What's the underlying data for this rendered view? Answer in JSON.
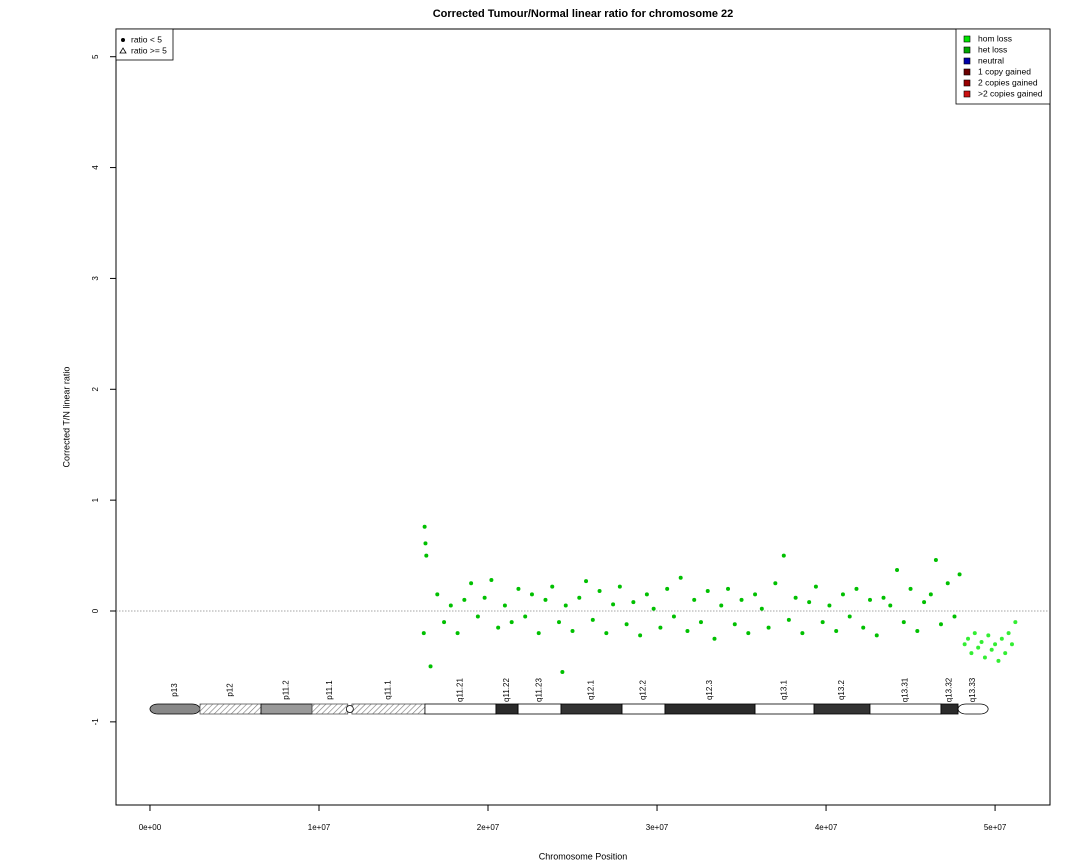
{
  "chart_data": {
    "type": "scatter",
    "title": "Corrected Tumour/Normal linear ratio for chromosome  22",
    "x_label": "Chromosome Position",
    "y_label": "Corrected T/N linear ratio",
    "xlim": [
      -2010000,
      53250000
    ],
    "ylim": [
      -1.75,
      5.25
    ],
    "xticks": [
      {
        "value": 0,
        "label": "0e+00"
      },
      {
        "value": 10000000,
        "label": "1e+07"
      },
      {
        "value": 20000000,
        "label": "2e+07"
      },
      {
        "value": 30000000,
        "label": "3e+07"
      },
      {
        "value": 40000000,
        "label": "4e+07"
      },
      {
        "value": 50000000,
        "label": "5e+07"
      }
    ],
    "yticks": [
      -1,
      0,
      1,
      2,
      3,
      4,
      5
    ],
    "hline": 0,
    "series": [
      {
        "color": "#00c000",
        "x": [
          16200000,
          16250000,
          16300000,
          16350000,
          16600000,
          17000000,
          17400000,
          17800000,
          18200000,
          18600000,
          19000000,
          19400000,
          19800000,
          20200000,
          20600000,
          21000000,
          21400000,
          21800000,
          22200000,
          22600000,
          23000000,
          23400000,
          23800000,
          24200000,
          24400000,
          24600000,
          25000000,
          25400000,
          25800000,
          26200000,
          26600000,
          27000000,
          27400000,
          27800000,
          28200000,
          28600000,
          29000000,
          29400000,
          29800000,
          30200000,
          30600000,
          31000000,
          31400000,
          31800000,
          32200000,
          32600000,
          33000000,
          33400000,
          33800000,
          34200000,
          34600000,
          35000000,
          35400000,
          35800000,
          36200000,
          36600000,
          37000000,
          37500000,
          37800000,
          38200000,
          38600000,
          39000000,
          39400000,
          39800000,
          40200000,
          40600000,
          41000000,
          41400000,
          41800000,
          42200000,
          42600000,
          43000000,
          43400000,
          43800000,
          44200000,
          44600000,
          45000000,
          45400000,
          45800000,
          46200000,
          46500000,
          46800000,
          47200000,
          47600000,
          47900000
        ],
        "values": [
          -0.2,
          0.76,
          0.61,
          0.5,
          -0.5,
          0.15,
          -0.1,
          0.05,
          -0.2,
          0.1,
          0.25,
          -0.05,
          0.12,
          0.28,
          -0.15,
          0.05,
          -0.1,
          0.2,
          -0.05,
          0.15,
          -0.2,
          0.1,
          0.22,
          -0.1,
          -0.55,
          0.05,
          -0.18,
          0.12,
          0.27,
          -0.08,
          0.18,
          -0.2,
          0.06,
          0.22,
          -0.12,
          0.08,
          -0.22,
          0.15,
          0.02,
          -0.15,
          0.2,
          -0.05,
          0.3,
          -0.18,
          0.1,
          -0.1,
          0.18,
          -0.25,
          0.05,
          0.2,
          -0.12,
          0.1,
          -0.2,
          0.15,
          0.02,
          -0.15,
          0.25,
          0.5,
          -0.08,
          0.12,
          -0.2,
          0.08,
          0.22,
          -0.1,
          0.05,
          -0.18,
          0.15,
          -0.05,
          0.2,
          -0.15,
          0.1,
          -0.22,
          0.12,
          0.05,
          0.37,
          -0.1,
          0.2,
          -0.18,
          0.08,
          0.15,
          0.46,
          -0.12,
          0.25,
          -0.05,
          0.33
        ]
      },
      {
        "color": "#33ee33",
        "x": [
          48200000,
          48400000,
          48600000,
          48800000,
          49000000,
          49200000,
          49400000,
          49600000,
          49800000,
          50000000,
          50200000,
          50400000,
          50600000,
          50800000,
          51000000,
          51200000
        ],
        "values": [
          -0.3,
          -0.25,
          -0.38,
          -0.2,
          -0.33,
          -0.28,
          -0.42,
          -0.22,
          -0.35,
          -0.3,
          -0.45,
          -0.25,
          -0.38,
          -0.2,
          -0.3,
          -0.1
        ]
      }
    ],
    "legend": [
      {
        "label": "hom loss",
        "color": "#00e600"
      },
      {
        "label": "het loss",
        "color": "#00a800"
      },
      {
        "label": "neutral",
        "color": "#0000aa"
      },
      {
        "label": "1 copy gained",
        "color": "#6b0000"
      },
      {
        "label": "2 copies gained",
        "color": "#990000"
      },
      {
        "label": ">2 copies gained",
        "color": "#cc1111"
      }
    ],
    "shape_legend": [
      "ratio < 5",
      "ratio >= 5"
    ],
    "ideogram": [
      {
        "label": "p13",
        "start": 0,
        "end": 2960000,
        "color": "#888888",
        "hatched": false
      },
      {
        "label": "p12",
        "start": 2960000,
        "end": 6570000,
        "color": "#ffffff",
        "hatched": true
      },
      {
        "label": "p11.2",
        "start": 6570000,
        "end": 9590000,
        "color": "#999999",
        "hatched": false
      },
      {
        "label": "p11.1",
        "start": 9590000,
        "end": 11700000,
        "color": "#ffffff",
        "hatched": true
      },
      {
        "label": "q11.1",
        "start": 11950000,
        "end": 16270000,
        "color": "#ffffff",
        "hatched": true
      },
      {
        "label": "q11.21",
        "start": 16270000,
        "end": 20470000,
        "color": "#ffffff",
        "hatched": false
      },
      {
        "label": "q11.22",
        "start": 20470000,
        "end": 21780000,
        "color": "#2b2b2b",
        "hatched": false
      },
      {
        "label": "q11.23",
        "start": 21780000,
        "end": 24320000,
        "color": "#ffffff",
        "hatched": false
      },
      {
        "label": "q12.1",
        "start": 24320000,
        "end": 27930000,
        "color": "#333333",
        "hatched": false
      },
      {
        "label": "q12.2",
        "start": 27930000,
        "end": 30470000,
        "color": "#ffffff",
        "hatched": false
      },
      {
        "label": "q12.3",
        "start": 30470000,
        "end": 35800000,
        "color": "#2b2b2b",
        "hatched": false
      },
      {
        "label": "q13.1",
        "start": 35800000,
        "end": 39290000,
        "color": "#ffffff",
        "hatched": false
      },
      {
        "label": "q13.2",
        "start": 39290000,
        "end": 42600000,
        "color": "#333333",
        "hatched": false
      },
      {
        "label": "q13.31",
        "start": 42600000,
        "end": 46800000,
        "color": "#ffffff",
        "hatched": false
      },
      {
        "label": "q13.32",
        "start": 46800000,
        "end": 47810000,
        "color": "#2b2b2b",
        "hatched": false
      },
      {
        "label": "q13.33",
        "start": 47810000,
        "end": 49590000,
        "color": "#ffffff",
        "hatched": false
      }
    ]
  }
}
